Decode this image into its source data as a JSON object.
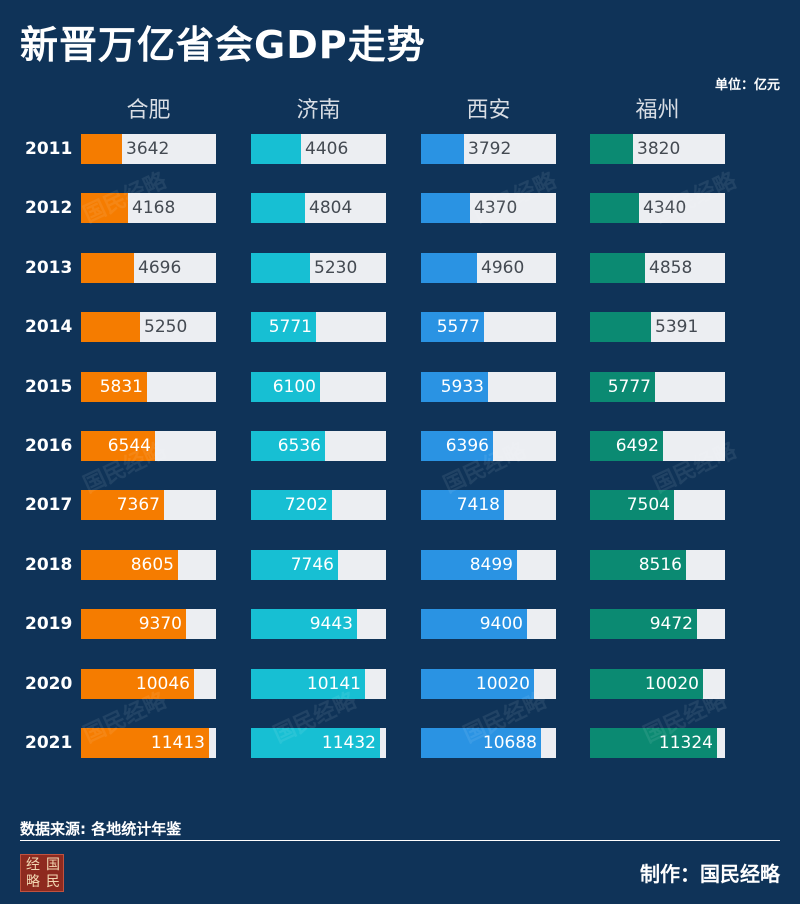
{
  "title": "新晋万亿省会GDP走势",
  "unit_label": "单位：亿元",
  "source": "数据来源: 各地统计年鉴",
  "credit": "制作：国民经略",
  "logo_chars": [
    "经",
    "国",
    "略",
    "民"
  ],
  "watermark_text": "国民经略",
  "colors": {
    "background": "#0f3358",
    "track": "#eceef2",
    "hefei": "#f57c00",
    "jinan": "#17bfd3",
    "xian": "#2a93e3",
    "fuzhou": "#0b8a72"
  },
  "chart_data": {
    "type": "bar",
    "title": "新晋万亿省会GDP走势",
    "categories": [
      "2011",
      "2012",
      "2013",
      "2014",
      "2015",
      "2016",
      "2017",
      "2018",
      "2019",
      "2020",
      "2021"
    ],
    "xlim": [
      0,
      12000
    ],
    "series": [
      {
        "name": "合肥",
        "color": "#f57c00",
        "values": [
          3642,
          4168,
          4696,
          5250,
          5831,
          6544,
          7367,
          8605,
          9370,
          10046,
          11413
        ]
      },
      {
        "name": "济南",
        "color": "#17bfd3",
        "values": [
          4406,
          4804,
          5230,
          5771,
          6100,
          6536,
          7202,
          7746,
          9443,
          10141,
          11432
        ]
      },
      {
        "name": "西安",
        "color": "#2a93e3",
        "values": [
          3792,
          4370,
          4960,
          5577,
          5933,
          6396,
          7418,
          8499,
          9400,
          10020,
          10688
        ]
      },
      {
        "name": "福州",
        "color": "#0b8a72",
        "values": [
          3820,
          4340,
          4858,
          5391,
          5777,
          6492,
          7504,
          8516,
          9472,
          10020,
          11324
        ]
      }
    ]
  }
}
